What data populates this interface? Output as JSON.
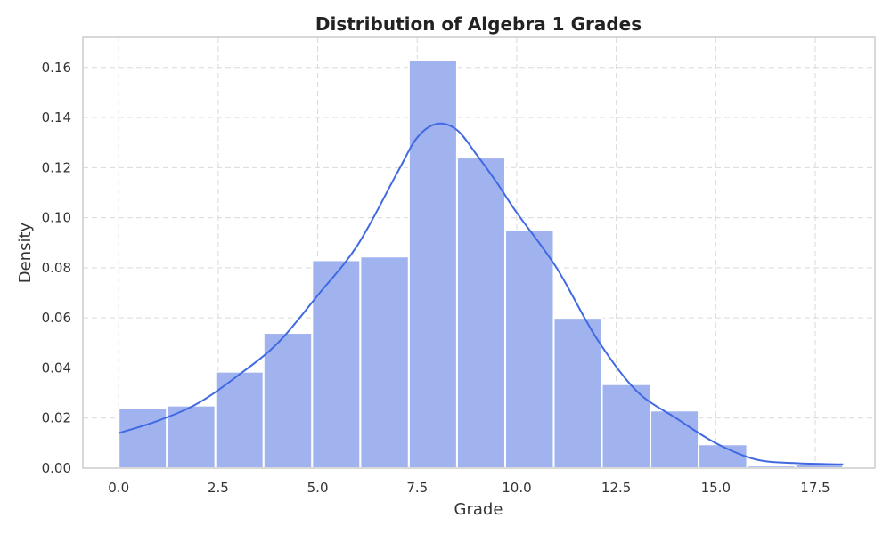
{
  "chart_data": {
    "type": "bar",
    "title": "Distribution of Algebra 1 Grades",
    "xlabel": "Grade",
    "ylabel": "Density",
    "xlim": [
      -0.9,
      19.0
    ],
    "ylim": [
      0.0,
      0.172
    ],
    "xticks": [
      "0.0",
      "2.5",
      "5.0",
      "7.5",
      "10.0",
      "12.5",
      "15.0",
      "17.5"
    ],
    "yticks": [
      "0.00",
      "0.02",
      "0.04",
      "0.06",
      "0.08",
      "0.10",
      "0.12",
      "0.14",
      "0.16"
    ],
    "grid": true,
    "bins": [
      {
        "x0": 0.0,
        "x1": 1.21,
        "density": 0.024
      },
      {
        "x0": 1.21,
        "x1": 2.43,
        "density": 0.025
      },
      {
        "x0": 2.43,
        "x1": 3.64,
        "density": 0.0385
      },
      {
        "x0": 3.64,
        "x1": 4.86,
        "density": 0.054
      },
      {
        "x0": 4.86,
        "x1": 6.07,
        "density": 0.083
      },
      {
        "x0": 6.07,
        "x1": 7.29,
        "density": 0.0845
      },
      {
        "x0": 7.29,
        "x1": 8.5,
        "density": 0.163
      },
      {
        "x0": 8.5,
        "x1": 9.71,
        "density": 0.124
      },
      {
        "x0": 9.71,
        "x1": 10.93,
        "density": 0.095
      },
      {
        "x0": 10.93,
        "x1": 12.14,
        "density": 0.06
      },
      {
        "x0": 12.14,
        "x1": 13.36,
        "density": 0.0335
      },
      {
        "x0": 13.36,
        "x1": 14.57,
        "density": 0.023
      },
      {
        "x0": 14.57,
        "x1": 15.79,
        "density": 0.0095
      },
      {
        "x0": 15.79,
        "x1": 17.0,
        "density": 0.001
      },
      {
        "x0": 17.0,
        "x1": 18.2,
        "density": 0.0015
      }
    ],
    "kde": {
      "x": [
        0.0,
        1.0,
        2.0,
        3.0,
        4.0,
        5.0,
        6.0,
        7.0,
        7.5,
        8.0,
        8.5,
        9.0,
        9.5,
        10.0,
        11.0,
        12.0,
        13.0,
        14.0,
        15.0,
        16.0,
        17.0,
        18.2
      ],
      "y": [
        0.014,
        0.019,
        0.026,
        0.037,
        0.05,
        0.069,
        0.089,
        0.118,
        0.132,
        0.1375,
        0.135,
        0.125,
        0.114,
        0.102,
        0.08,
        0.052,
        0.031,
        0.02,
        0.01,
        0.0035,
        0.002,
        0.0015
      ]
    },
    "colors": {
      "bar_fill": "#a0b3ef",
      "bar_edge": "#ffffff",
      "kde_line": "#4169e1",
      "grid": "#d9d9d9",
      "frame": "#cccccc"
    }
  }
}
